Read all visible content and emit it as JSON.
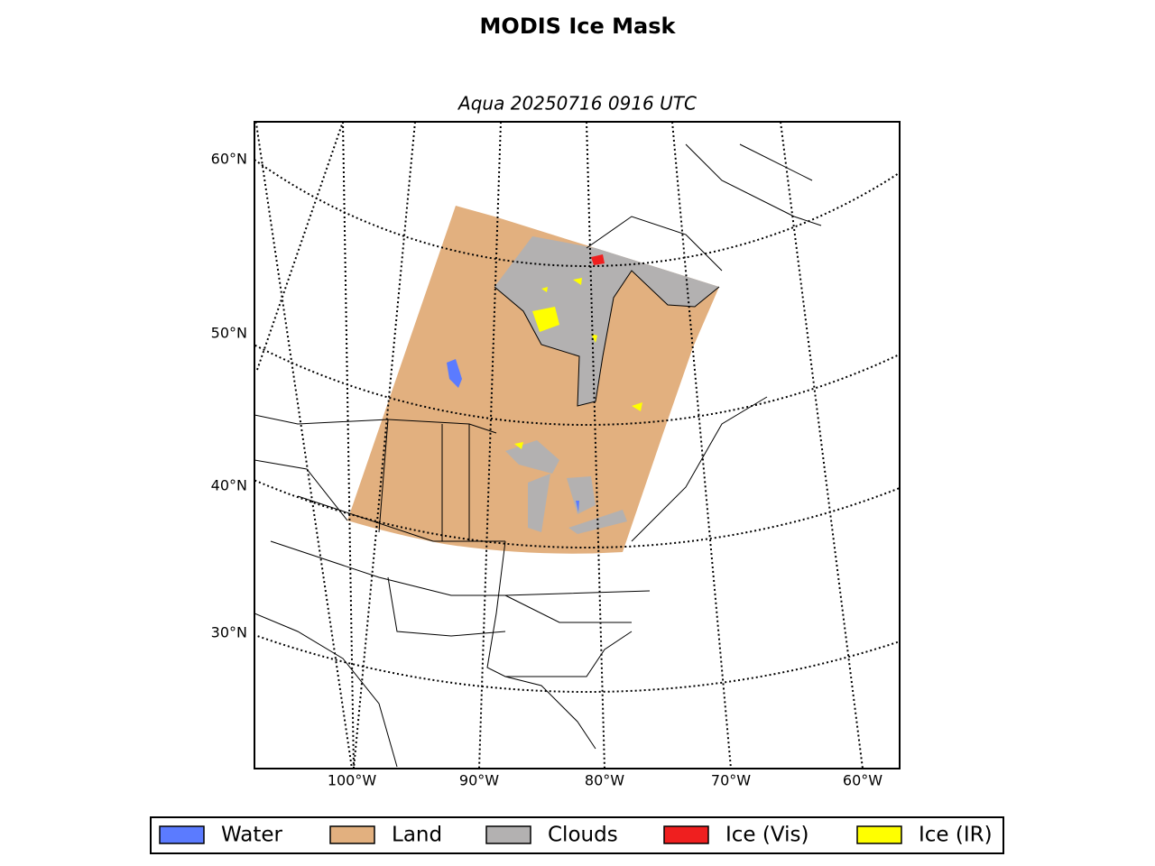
{
  "title": "MODIS Ice Mask",
  "subtitle": "Aqua 20250716 0916 UTC",
  "latitude_labels": [
    "60°N",
    "50°N",
    "40°N",
    "30°N"
  ],
  "longitude_labels": [
    "100°W",
    "90°W",
    "80°W",
    "70°W",
    "60°W"
  ],
  "legend": [
    {
      "label": "Water",
      "color": "#5b7bff"
    },
    {
      "label": "Land",
      "color": "#e2b07f"
    },
    {
      "label": "Clouds",
      "color": "#b3b1b1"
    },
    {
      "label": "Ice (Vis)",
      "color": "#ef1f1f"
    },
    {
      "label": "Ice (IR)",
      "color": "#ffff00"
    }
  ]
}
